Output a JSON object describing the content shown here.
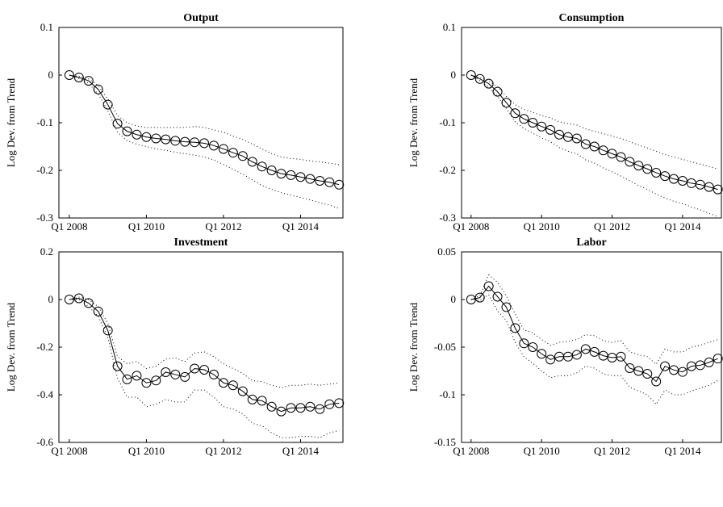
{
  "chart_data": [
    {
      "type": "line",
      "title": "Output",
      "y_label": "Log Dev. from Trend",
      "x": [
        2008,
        2008.25,
        2008.5,
        2008.75,
        2009,
        2009.25,
        2009.5,
        2009.75,
        2010,
        2010.25,
        2010.5,
        2010.75,
        2011,
        2011.25,
        2011.5,
        2011.75,
        2012,
        2012.25,
        2012.5,
        2012.75,
        2013,
        2013.25,
        2013.5,
        2013.75,
        2014,
        2014.25,
        2014.5,
        2014.75,
        2015
      ],
      "xlim": [
        2007.73,
        2015.1
      ],
      "xticks": [
        {
          "value": 2008,
          "label": "Q1 2008"
        },
        {
          "value": 2010,
          "label": "Q1 2010"
        },
        {
          "value": 2012,
          "label": "Q1 2012"
        },
        {
          "value": 2014,
          "label": "Q1 2014"
        }
      ],
      "ylim": [
        -0.3,
        0.1
      ],
      "yticks": [
        -0.3,
        -0.2,
        -0.1,
        0,
        0.1
      ],
      "series": [
        {
          "color": "#000000",
          "line_style": "solid",
          "marker": "circle",
          "values": [
            0,
            -0.005,
            -0.012,
            -0.03,
            -0.062,
            -0.102,
            -0.118,
            -0.125,
            -0.13,
            -0.133,
            -0.135,
            -0.138,
            -0.14,
            -0.141,
            -0.143,
            -0.148,
            -0.155,
            -0.163,
            -0.17,
            -0.182,
            -0.192,
            -0.2,
            -0.207,
            -0.21,
            -0.214,
            -0.218,
            -0.222,
            -0.225,
            -0.23
          ]
        },
        {
          "color": "#000000",
          "line_style": "dotted",
          "values": [
            0,
            -0.003,
            -0.008,
            -0.022,
            -0.05,
            -0.085,
            -0.1,
            -0.107,
            -0.11,
            -0.11,
            -0.11,
            -0.11,
            -0.11,
            -0.108,
            -0.11,
            -0.115,
            -0.12,
            -0.128,
            -0.135,
            -0.145,
            -0.155,
            -0.165,
            -0.172,
            -0.175,
            -0.177,
            -0.18,
            -0.182,
            -0.185,
            -0.188
          ]
        },
        {
          "color": "#000000",
          "line_style": "dotted",
          "values": [
            0,
            -0.007,
            -0.017,
            -0.04,
            -0.075,
            -0.12,
            -0.138,
            -0.145,
            -0.15,
            -0.155,
            -0.158,
            -0.162,
            -0.165,
            -0.168,
            -0.172,
            -0.178,
            -0.188,
            -0.198,
            -0.208,
            -0.22,
            -0.232,
            -0.24,
            -0.247,
            -0.252,
            -0.257,
            -0.262,
            -0.268,
            -0.273,
            -0.28
          ]
        }
      ]
    },
    {
      "type": "line",
      "title": "Consumption",
      "y_label": "Log Dev. from Trend",
      "x": [
        2008,
        2008.25,
        2008.5,
        2008.75,
        2009,
        2009.25,
        2009.5,
        2009.75,
        2010,
        2010.25,
        2010.5,
        2010.75,
        2011,
        2011.25,
        2011.5,
        2011.75,
        2012,
        2012.25,
        2012.5,
        2012.75,
        2013,
        2013.25,
        2013.5,
        2013.75,
        2014,
        2014.25,
        2014.5,
        2014.75,
        2015
      ],
      "xlim": [
        2007.73,
        2015.1
      ],
      "xticks": [
        {
          "value": 2008,
          "label": "Q1 2008"
        },
        {
          "value": 2010,
          "label": "Q1 2010"
        },
        {
          "value": 2012,
          "label": "Q1 2012"
        },
        {
          "value": 2014,
          "label": "Q1 2014"
        }
      ],
      "ylim": [
        -0.3,
        0.1
      ],
      "yticks": [
        -0.3,
        -0.2,
        -0.1,
        0,
        0.1
      ],
      "series": [
        {
          "color": "#000000",
          "line_style": "solid",
          "marker": "circle",
          "values": [
            0,
            -0.008,
            -0.018,
            -0.035,
            -0.058,
            -0.08,
            -0.092,
            -0.1,
            -0.108,
            -0.115,
            -0.125,
            -0.13,
            -0.133,
            -0.145,
            -0.15,
            -0.158,
            -0.165,
            -0.172,
            -0.182,
            -0.19,
            -0.197,
            -0.205,
            -0.212,
            -0.218,
            -0.222,
            -0.227,
            -0.23,
            -0.235,
            -0.24
          ]
        },
        {
          "color": "#000000",
          "line_style": "dotted",
          "values": [
            0,
            -0.005,
            -0.012,
            -0.025,
            -0.045,
            -0.062,
            -0.072,
            -0.078,
            -0.085,
            -0.09,
            -0.098,
            -0.102,
            -0.105,
            -0.113,
            -0.118,
            -0.123,
            -0.128,
            -0.133,
            -0.14,
            -0.147,
            -0.153,
            -0.16,
            -0.167,
            -0.172,
            -0.177,
            -0.182,
            -0.187,
            -0.192,
            -0.197
          ]
        },
        {
          "color": "#000000",
          "line_style": "dotted",
          "values": [
            0,
            -0.012,
            -0.025,
            -0.045,
            -0.07,
            -0.098,
            -0.112,
            -0.122,
            -0.132,
            -0.14,
            -0.152,
            -0.16,
            -0.165,
            -0.178,
            -0.185,
            -0.195,
            -0.203,
            -0.212,
            -0.222,
            -0.232,
            -0.24,
            -0.25,
            -0.258,
            -0.265,
            -0.27,
            -0.277,
            -0.283,
            -0.29,
            -0.297
          ]
        }
      ]
    },
    {
      "type": "line",
      "title": "Investment",
      "y_label": "Log Dev. from Trend",
      "x": [
        2008,
        2008.25,
        2008.5,
        2008.75,
        2009,
        2009.25,
        2009.5,
        2009.75,
        2010,
        2010.25,
        2010.5,
        2010.75,
        2011,
        2011.25,
        2011.5,
        2011.75,
        2012,
        2012.25,
        2012.5,
        2012.75,
        2013,
        2013.25,
        2013.5,
        2013.75,
        2014,
        2014.25,
        2014.5,
        2014.75,
        2015
      ],
      "xlim": [
        2007.73,
        2015.1
      ],
      "xticks": [
        {
          "value": 2008,
          "label": "Q1 2008"
        },
        {
          "value": 2010,
          "label": "Q1 2010"
        },
        {
          "value": 2012,
          "label": "Q1 2012"
        },
        {
          "value": 2014,
          "label": "Q1 2014"
        }
      ],
      "ylim": [
        -0.6,
        0.2
      ],
      "yticks": [
        -0.6,
        -0.4,
        -0.2,
        0,
        0.2
      ],
      "series": [
        {
          "color": "#000000",
          "line_style": "solid",
          "marker": "circle",
          "values": [
            0,
            0.005,
            -0.015,
            -0.05,
            -0.13,
            -0.28,
            -0.335,
            -0.32,
            -0.35,
            -0.34,
            -0.305,
            -0.315,
            -0.325,
            -0.29,
            -0.295,
            -0.315,
            -0.35,
            -0.36,
            -0.385,
            -0.42,
            -0.425,
            -0.45,
            -0.47,
            -0.455,
            -0.455,
            -0.45,
            -0.46,
            -0.44,
            -0.435
          ]
        },
        {
          "color": "#000000",
          "line_style": "dotted",
          "values": [
            0,
            0.01,
            0,
            -0.03,
            -0.1,
            -0.24,
            -0.27,
            -0.26,
            -0.29,
            -0.28,
            -0.25,
            -0.245,
            -0.26,
            -0.225,
            -0.22,
            -0.24,
            -0.27,
            -0.29,
            -0.31,
            -0.34,
            -0.345,
            -0.36,
            -0.37,
            -0.36,
            -0.36,
            -0.355,
            -0.36,
            -0.355,
            -0.35
          ]
        },
        {
          "color": "#000000",
          "line_style": "dotted",
          "values": [
            0,
            0,
            -0.03,
            -0.07,
            -0.16,
            -0.33,
            -0.41,
            -0.41,
            -0.45,
            -0.44,
            -0.42,
            -0.43,
            -0.43,
            -0.38,
            -0.38,
            -0.41,
            -0.45,
            -0.46,
            -0.48,
            -0.52,
            -0.53,
            -0.56,
            -0.58,
            -0.58,
            -0.575,
            -0.575,
            -0.58,
            -0.56,
            -0.55
          ]
        }
      ]
    },
    {
      "type": "line",
      "title": "Labor",
      "y_label": "Log Dev. from Trend",
      "x": [
        2008,
        2008.25,
        2008.5,
        2008.75,
        2009,
        2009.25,
        2009.5,
        2009.75,
        2010,
        2010.25,
        2010.5,
        2010.75,
        2011,
        2011.25,
        2011.5,
        2011.75,
        2012,
        2012.25,
        2012.5,
        2012.75,
        2013,
        2013.25,
        2013.5,
        2013.75,
        2014,
        2014.25,
        2014.5,
        2014.75,
        2015
      ],
      "xlim": [
        2007.73,
        2015.1
      ],
      "xticks": [
        {
          "value": 2008,
          "label": "Q1 2008"
        },
        {
          "value": 2010,
          "label": "Q1 2010"
        },
        {
          "value": 2012,
          "label": "Q1 2012"
        },
        {
          "value": 2014,
          "label": "Q1 2014"
        }
      ],
      "ylim": [
        -0.15,
        0.05
      ],
      "yticks": [
        -0.15,
        -0.1,
        -0.05,
        0,
        0.05
      ],
      "series": [
        {
          "color": "#000000",
          "line_style": "solid",
          "marker": "circle",
          "values": [
            0,
            0.002,
            0.014,
            0.003,
            -0.008,
            -0.03,
            -0.046,
            -0.05,
            -0.057,
            -0.063,
            -0.06,
            -0.06,
            -0.058,
            -0.052,
            -0.055,
            -0.059,
            -0.061,
            -0.06,
            -0.072,
            -0.075,
            -0.078,
            -0.086,
            -0.07,
            -0.074,
            -0.076,
            -0.07,
            -0.069,
            -0.066,
            -0.062
          ]
        },
        {
          "color": "#000000",
          "line_style": "dotted",
          "values": [
            0,
            0.004,
            0.026,
            0.018,
            0.004,
            -0.015,
            -0.032,
            -0.035,
            -0.042,
            -0.048,
            -0.045,
            -0.044,
            -0.042,
            -0.037,
            -0.038,
            -0.043,
            -0.045,
            -0.043,
            -0.055,
            -0.058,
            -0.06,
            -0.068,
            -0.052,
            -0.055,
            -0.055,
            -0.05,
            -0.048,
            -0.045,
            -0.042
          ]
        },
        {
          "color": "#000000",
          "line_style": "dotted",
          "values": [
            0,
            -0.001,
            0.005,
            -0.012,
            -0.022,
            -0.045,
            -0.06,
            -0.067,
            -0.075,
            -0.082,
            -0.08,
            -0.08,
            -0.077,
            -0.07,
            -0.072,
            -0.078,
            -0.08,
            -0.08,
            -0.092,
            -0.096,
            -0.1,
            -0.11,
            -0.095,
            -0.1,
            -0.1,
            -0.096,
            -0.093,
            -0.09,
            -0.085
          ]
        }
      ]
    }
  ]
}
